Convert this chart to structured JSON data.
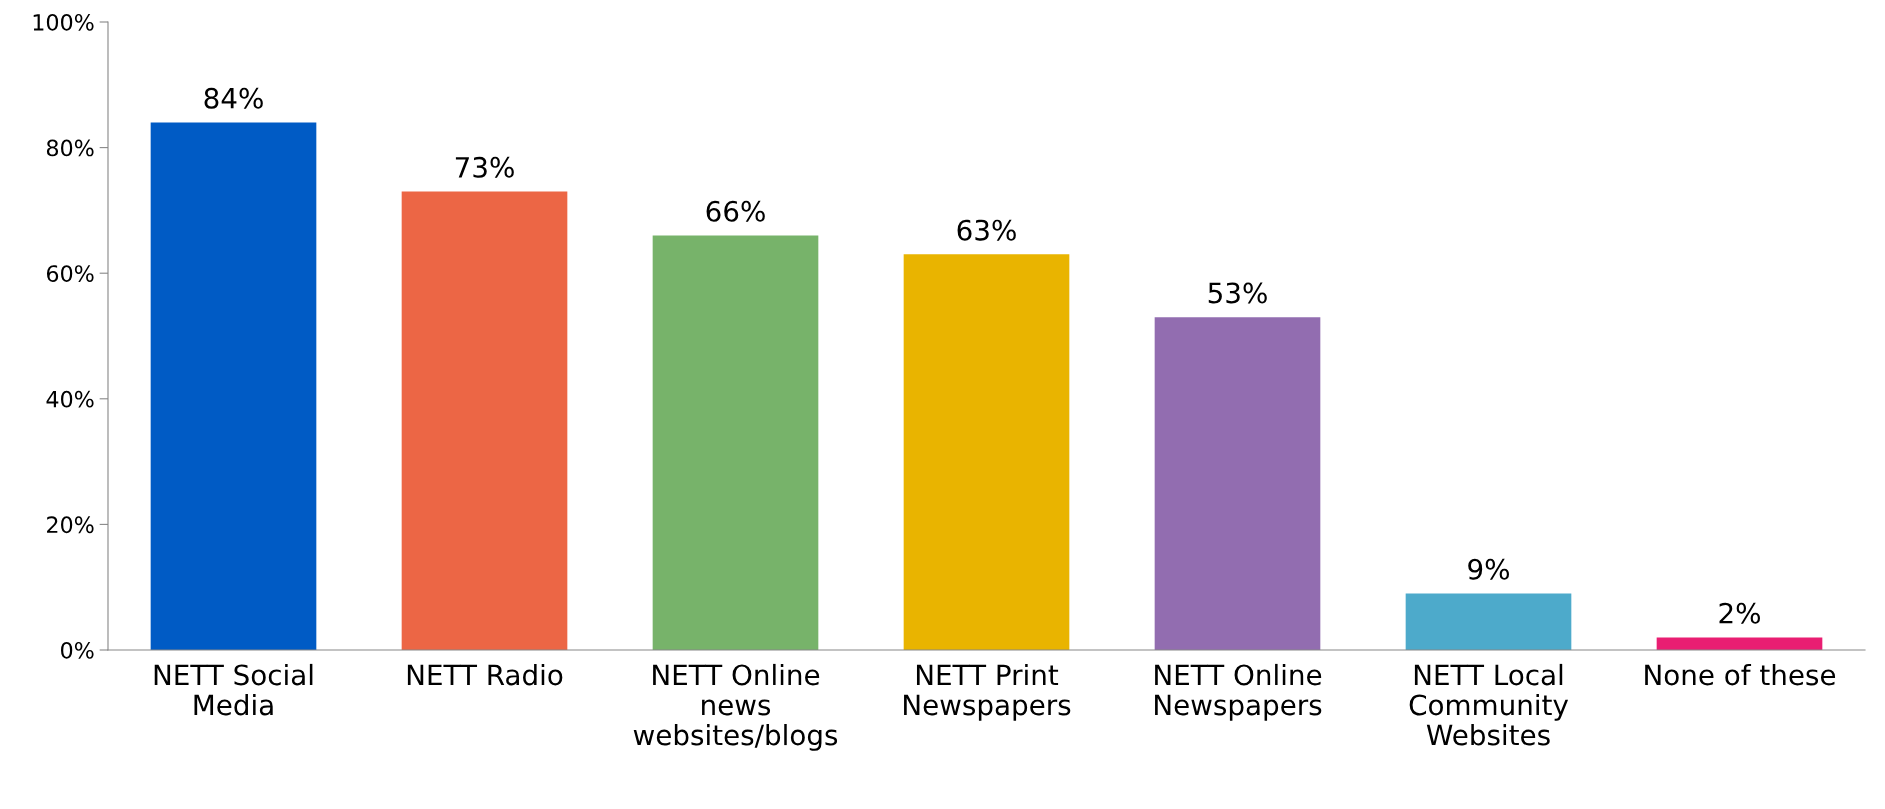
{
  "chart_data": {
    "type": "bar",
    "categories": [
      "NETT Social Media",
      "NETT Radio",
      "NETT Online news websites/blogs",
      "NETT Print Newspapers",
      "NETT Online Newspapers",
      "NETT Local Community Websites",
      "None of these"
    ],
    "values": [
      84,
      73,
      66,
      63,
      53,
      9,
      2
    ],
    "colors": [
      "#005bc5",
      "#ec6645",
      "#77b36a",
      "#e9b400",
      "#926db0",
      "#4daacb",
      "#e91e72"
    ],
    "value_labels": [
      "84%",
      "73%",
      "66%",
      "63%",
      "53%",
      "9%",
      "2%"
    ],
    "ylim": [
      0,
      100
    ],
    "yticks": [
      {
        "value": 0,
        "label": "0%"
      },
      {
        "value": 20,
        "label": "20%"
      },
      {
        "value": 40,
        "label": "40%"
      },
      {
        "value": 60,
        "label": "60%"
      },
      {
        "value": 80,
        "label": "80%"
      },
      {
        "value": 100,
        "label": "100%"
      }
    ],
    "grid": false,
    "legend": false
  }
}
